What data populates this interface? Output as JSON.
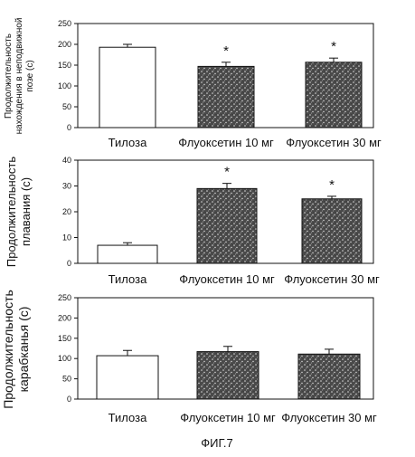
{
  "figure": {
    "caption": "ФИГ.7",
    "panels": [
      {
        "id": "immobility",
        "ylabel_lines": [
          "Продолжительность",
          "нахождения в неподвижной",
          "позе (с)"
        ]
      },
      {
        "id": "swimming",
        "ylabel_lines": [
          "Продолжительность",
          "плавания (с)"
        ]
      },
      {
        "id": "climbing",
        "ylabel_lines": [
          "Продолжительность",
          "карабканья (с)"
        ]
      }
    ]
  },
  "colors": {
    "control_bar": "#ffffff",
    "treated_bar": "#4a4a4a",
    "axis": "#111111"
  },
  "chart_data": [
    {
      "type": "bar",
      "categories": [
        "Тилоза",
        "Флуоксетин 10 мг",
        "Флуоксетин 30 мг"
      ],
      "values": [
        193,
        147,
        157
      ],
      "errors": [
        7,
        10,
        10
      ],
      "significance": [
        "",
        "*",
        "*"
      ],
      "ylim": [
        0,
        250
      ],
      "yticks": [
        0,
        50,
        100,
        150,
        200,
        250
      ],
      "ylabel": "Продолжительность нахождения в неподвижной позе (с)",
      "xlabel": ""
    },
    {
      "type": "bar",
      "categories": [
        "Тилоза",
        "Флуоксетин 10 мг",
        "Флуоксетин 30 мг"
      ],
      "values": [
        7,
        29,
        25
      ],
      "errors": [
        1,
        2,
        1
      ],
      "significance": [
        "",
        "*",
        "*"
      ],
      "ylim": [
        0,
        40
      ],
      "yticks": [
        0,
        10,
        20,
        30,
        40
      ],
      "ylabel": "Продолжительность плавания (с)",
      "xlabel": ""
    },
    {
      "type": "bar",
      "categories": [
        "Тилоза",
        "Флуоксетин 10 мг",
        "Флуоксетин 30 мг"
      ],
      "values": [
        107,
        117,
        111
      ],
      "errors": [
        13,
        13,
        12
      ],
      "significance": [
        "",
        "",
        ""
      ],
      "ylim": [
        0,
        250
      ],
      "yticks": [
        0,
        50,
        100,
        150,
        200,
        250
      ],
      "ylabel": "Продолжительность карабканья (с)",
      "xlabel": ""
    }
  ]
}
